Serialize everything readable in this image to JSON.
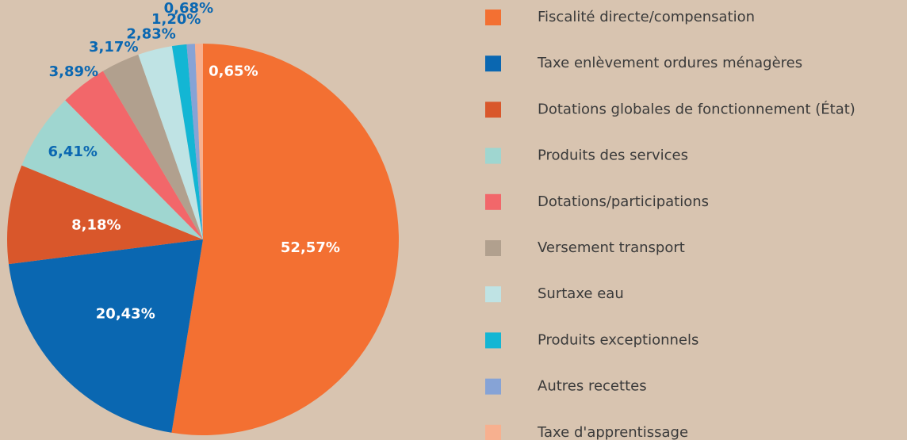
{
  "chart_data": {
    "type": "pie",
    "categories": [
      "Fiscalité directe/compensation",
      "Taxe enlèvement ordures ménagères",
      "Dotations globales de fonctionnement (État)",
      "Produits des services",
      "Dotations/participations",
      "Versement transport",
      "Surtaxe eau",
      "Produits exceptionnels",
      "Autres recettes",
      "Taxe d'apprentissage"
    ],
    "values": [
      52.57,
      20.43,
      8.18,
      6.41,
      3.89,
      3.17,
      2.83,
      1.2,
      0.68,
      0.65
    ],
    "value_labels": [
      "52,57%",
      "20,43%",
      "8,18%",
      "6,41%",
      "3,89%",
      "3,17%",
      "2,83%",
      "1,20%",
      "0,68%",
      "0,65%"
    ],
    "colors": [
      "#f37032",
      "#0a67b1",
      "#d9572b",
      "#9fd6d0",
      "#f2676a",
      "#b1a08e",
      "#bfe3e4",
      "#13b6d4",
      "#86a3d6",
      "#f7b08f"
    ],
    "legend": "right"
  }
}
